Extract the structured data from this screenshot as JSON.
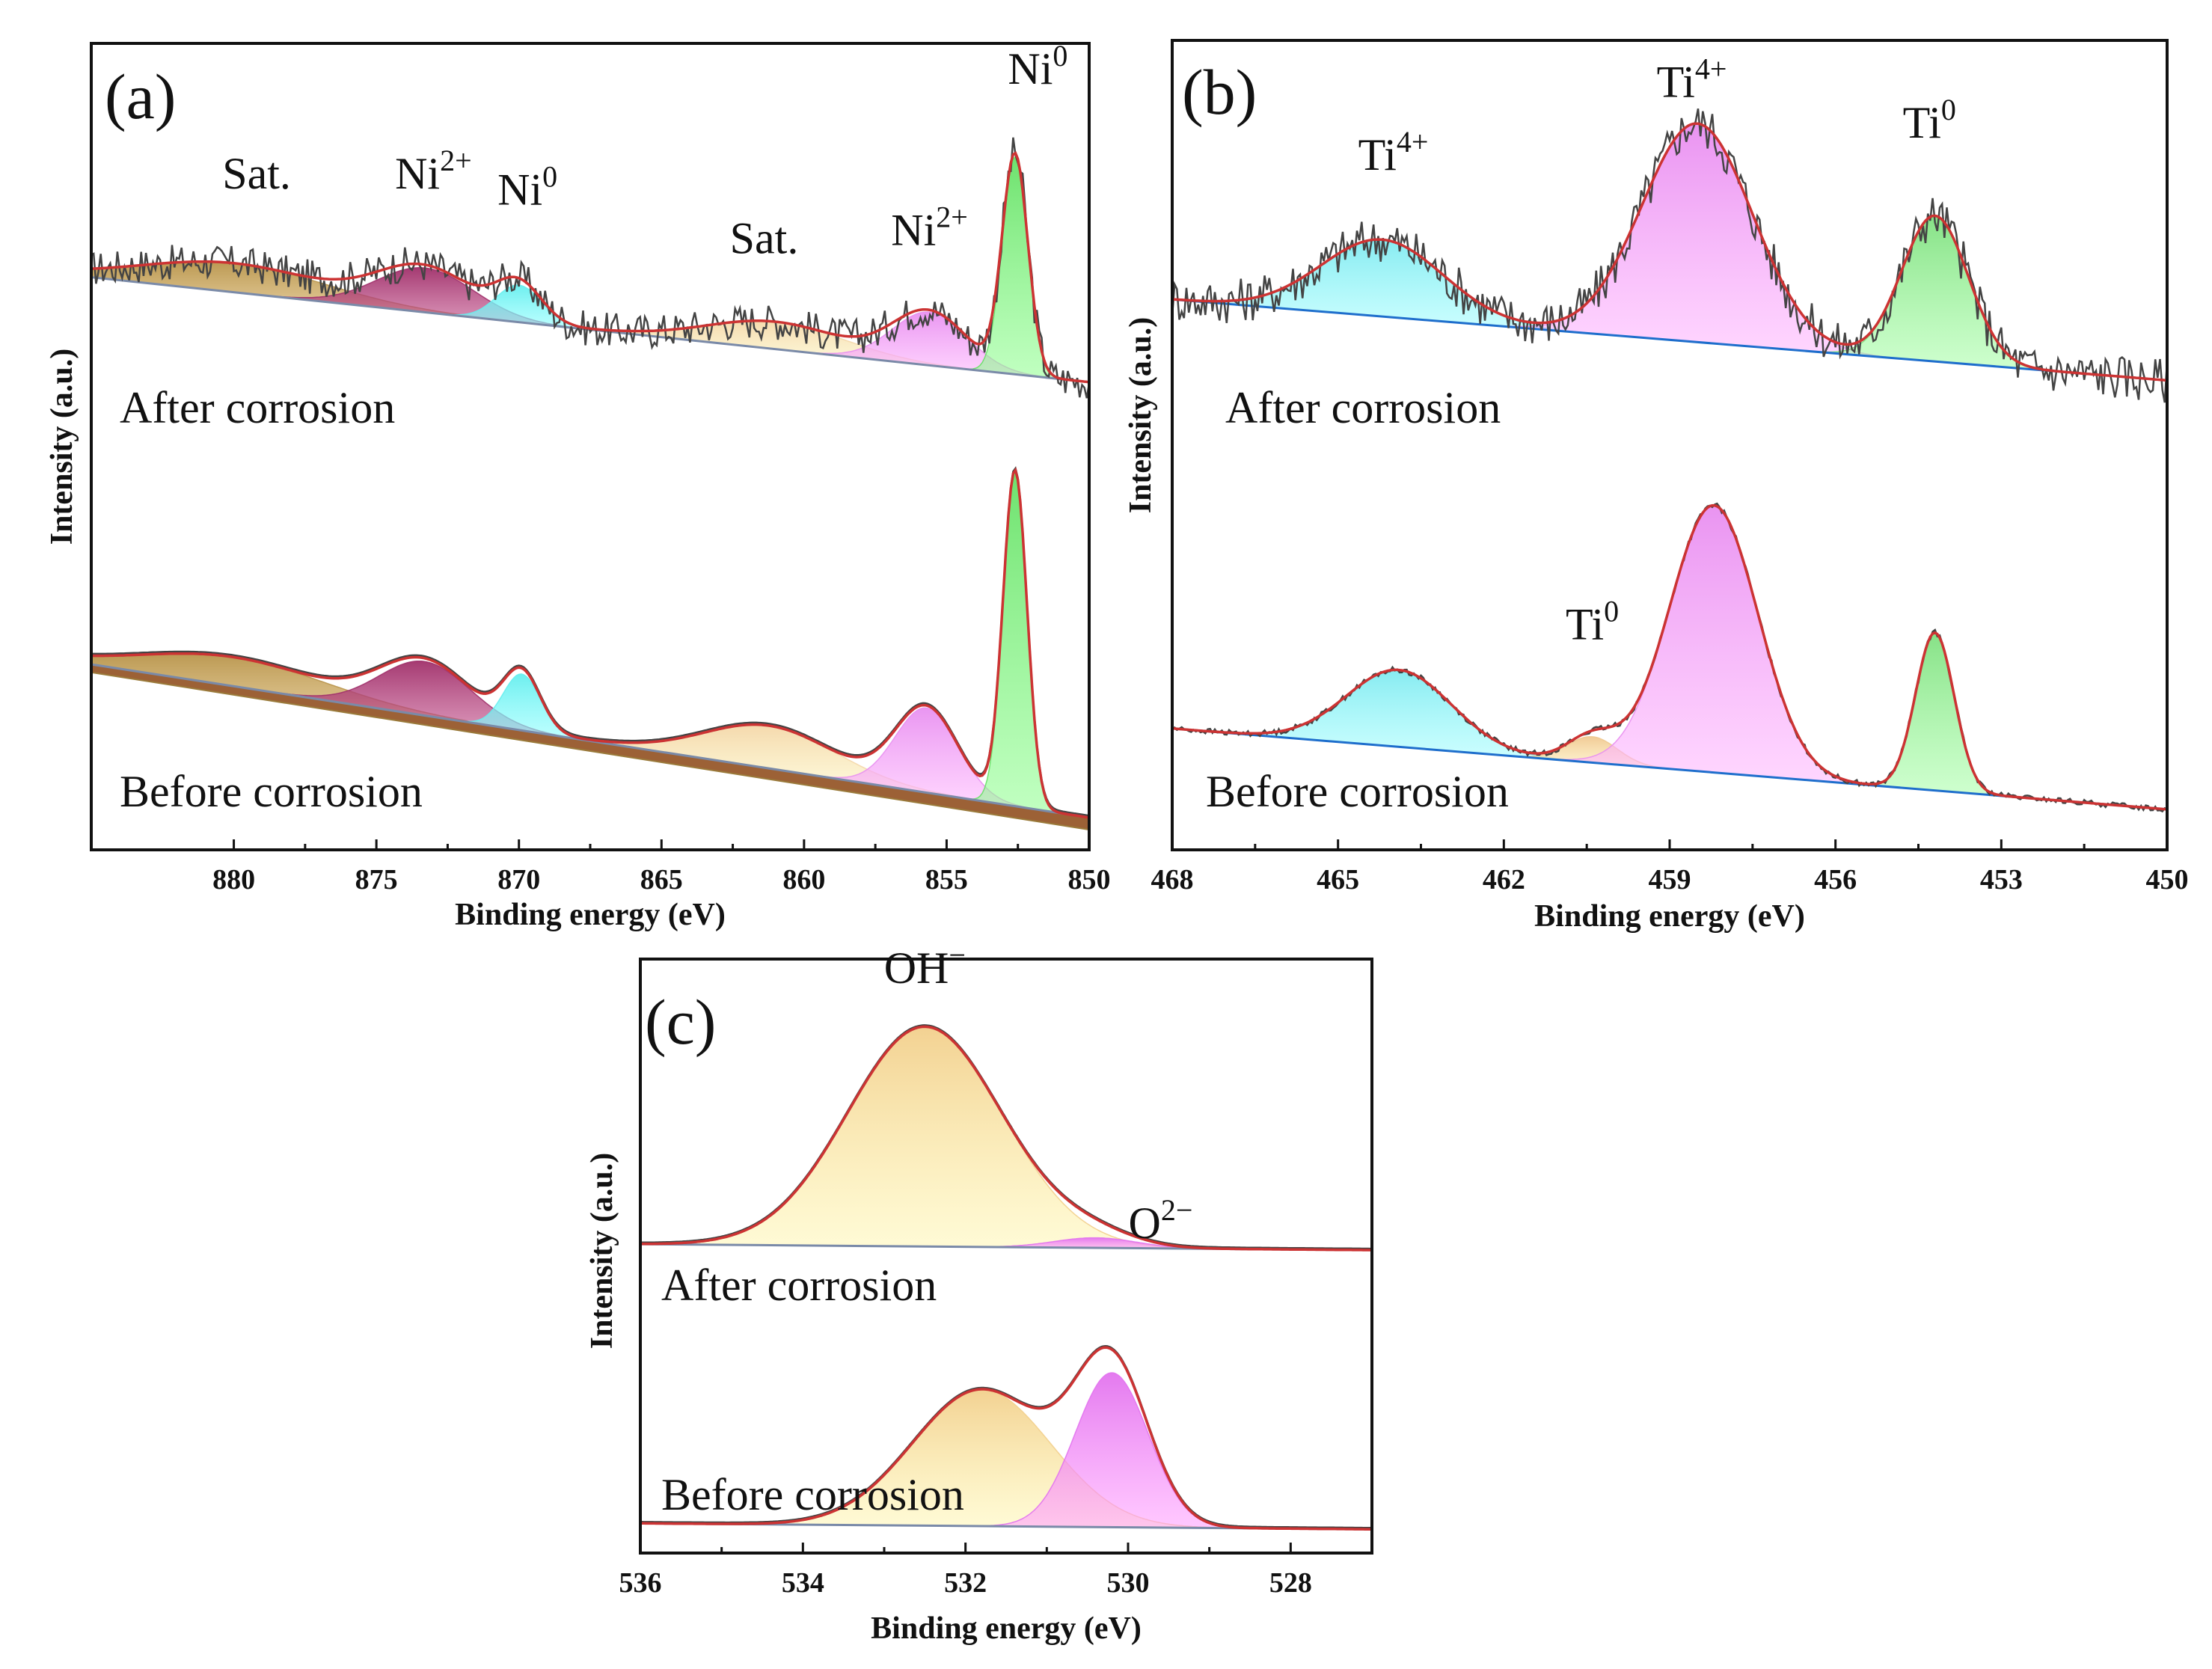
{
  "colors": {
    "satellite": "#b8944a",
    "ni2_low": "#a0306a",
    "ni0": "#66eeee",
    "sat2": "#f4d7a8",
    "ni2_high": "#e890f0",
    "ni0_main": "#66e066",
    "ti4_low": "#80eaf0",
    "ti4_high": "#e88ef0",
    "ti0": "#80e080",
    "ti0_small": "#f0c890",
    "oh": "#f2cf8c",
    "o2": "#e273ee",
    "fit": "#cc3333",
    "raw": "#444444",
    "background": "#7a8aa8",
    "background_b": "#1e6ecc",
    "background_filled": "#8b4513"
  },
  "chart_data": [
    {
      "id": "a",
      "type": "line",
      "panel_label": "(a)",
      "xlabel": "Binding energy (eV)",
      "ylabel": "Intensity (a.u.)",
      "xlim": [
        885,
        850
      ],
      "xticks": [
        880,
        875,
        870,
        865,
        860,
        855,
        850
      ],
      "ylim": [
        0,
        100
      ],
      "notes": {
        "after": "After corrosion",
        "before": "Before corrosion"
      },
      "peak_labels": [
        {
          "text": "Sat.",
          "sup": "",
          "x": 879.2,
          "y": 82
        },
        {
          "text": "Ni",
          "sup": "2+",
          "x": 873.0,
          "y": 82
        },
        {
          "text": "Ni",
          "sup": "0",
          "x": 869.7,
          "y": 80
        },
        {
          "text": "Sat.",
          "sup": "",
          "x": 861.4,
          "y": 74
        },
        {
          "text": "Ni",
          "sup": "2+",
          "x": 855.6,
          "y": 75
        },
        {
          "text": "Ni",
          "sup": "0",
          "x": 851.8,
          "y": 95
        }
      ],
      "spectra": [
        {
          "name": "After corrosion",
          "baseline": [
            [
              885,
              71
            ],
            [
              850,
              58
            ]
          ],
          "peaks": [
            {
              "name": "Sat.",
              "center": 880.0,
              "height": 3.6,
              "width": 3.2,
              "color": "satellite"
            },
            {
              "name": "Ni2+",
              "center": 873.3,
              "height": 5.5,
              "width": 1.7,
              "color": "ni2_low"
            },
            {
              "name": "Ni0",
              "center": 870.0,
              "height": 4.6,
              "width": 0.8,
              "color": "ni0"
            },
            {
              "name": "Sat.",
              "center": 861.0,
              "height": 3.4,
              "width": 2.4,
              "color": "sat2"
            },
            {
              "name": "Ni2+",
              "center": 855.6,
              "height": 6.6,
              "width": 1.3,
              "color": "ni2_high"
            },
            {
              "name": "Ni0",
              "center": 852.6,
              "height": 27.0,
              "width": 0.45,
              "color": "ni0_main"
            }
          ],
          "noise": 2.2
        },
        {
          "name": "Before corrosion",
          "baseline": [
            [
              885,
              23
            ],
            [
              850,
              4
            ]
          ],
          "peaks": [
            {
              "name": "Sat.",
              "center": 880.0,
              "height": 3.6,
              "width": 3.2,
              "color": "satellite"
            },
            {
              "name": "Ni2+",
              "center": 873.3,
              "height": 6.7,
              "width": 1.6,
              "color": "ni2_low"
            },
            {
              "name": "Ni0",
              "center": 869.9,
              "height": 7.0,
              "width": 0.65,
              "color": "ni0"
            },
            {
              "name": "Sat.",
              "center": 861.2,
              "height": 5.3,
              "width": 2.3,
              "color": "sat2"
            },
            {
              "name": "Ni2+",
              "center": 855.7,
              "height": 10.5,
              "width": 1.1,
              "color": "ni2_high"
            },
            {
              "name": "Ni0",
              "center": 852.6,
              "height": 41.5,
              "width": 0.42,
              "color": "ni0_main"
            }
          ],
          "noise": 0
        }
      ]
    },
    {
      "id": "b",
      "type": "line",
      "panel_label": "(b)",
      "xlabel": "Binding energy (eV)",
      "ylabel": "Intensity (a.u.)",
      "xlim": [
        468,
        450
      ],
      "xticks": [
        468,
        465,
        462,
        459,
        456,
        453,
        450
      ],
      "ylim": [
        0,
        100
      ],
      "notes": {
        "after": "After corrosion",
        "before": "Before corrosion"
      },
      "peak_labels": [
        {
          "text": "Ti",
          "sup": "4+",
          "x": 464.0,
          "y": 84
        },
        {
          "text": "Ti",
          "sup": "4+",
          "x": 458.6,
          "y": 93
        },
        {
          "text": "Ti",
          "sup": "0",
          "x": 454.3,
          "y": 88
        },
        {
          "text": "Ti",
          "sup": "0",
          "x": 460.4,
          "y": 26
        }
      ],
      "spectra": [
        {
          "name": "After corrosion",
          "baseline": [
            [
              468,
              68
            ],
            [
              450,
              58
            ]
          ],
          "peaks": [
            {
              "name": "Ti4+",
              "center": 464.2,
              "height": 9.5,
              "width": 1.1,
              "color": "ti4_low"
            },
            {
              "name": "Ti4+",
              "center": 458.5,
              "height": 27.0,
              "width": 1.0,
              "color": "ti4_high"
            },
            {
              "name": "Ti0",
              "center": 454.2,
              "height": 18.0,
              "width": 0.6,
              "color": "ti0"
            }
          ],
          "noise": 2.8
        },
        {
          "name": "Before corrosion",
          "baseline": [
            [
              468,
              15
            ],
            [
              450,
              5
            ]
          ],
          "peaks": [
            {
              "name": "Ti4+",
              "center": 463.9,
              "height": 9.5,
              "width": 0.95,
              "color": "ti4_low"
            },
            {
              "name": "Ti0",
              "center": 460.4,
              "height": 3.2,
              "width": 0.45,
              "color": "ti0_small"
            },
            {
              "name": "Ti4+",
              "center": 458.2,
              "height": 33.0,
              "width": 0.8,
              "color": "ti4_high"
            },
            {
              "name": "Ti0",
              "center": 454.2,
              "height": 19.5,
              "width": 0.35,
              "color": "ti0"
            }
          ],
          "noise": 0.35
        }
      ]
    },
    {
      "id": "c",
      "type": "line",
      "panel_label": "(c)",
      "xlabel": "Binding energy (eV)",
      "ylabel": "Intensity (a.u.)",
      "xlim": [
        536,
        527
      ],
      "xticks": [
        536,
        534,
        532,
        530,
        528
      ],
      "ylim": [
        0,
        100
      ],
      "notes": {
        "after": "After corrosion",
        "before": "Before corrosion"
      },
      "peak_labels": [
        {
          "text": "OH",
          "sup": "−",
          "x": 532.5,
          "y": 96
        },
        {
          "text": "O",
          "sup": "2−",
          "x": 529.6,
          "y": 53
        }
      ],
      "spectra": [
        {
          "name": "After corrosion",
          "baseline": [
            [
              536,
              52
            ],
            [
              527,
              51
            ]
          ],
          "peaks": [
            {
              "name": "OH-",
              "center": 532.5,
              "height": 37.0,
              "width": 0.95,
              "color": "oh"
            },
            {
              "name": "O2-",
              "center": 530.4,
              "height": 1.7,
              "width": 0.5,
              "color": "o2"
            }
          ],
          "noise": 0
        },
        {
          "name": "Before corrosion",
          "baseline": [
            [
              536,
              5
            ],
            [
              527,
              4
            ]
          ],
          "peaks": [
            {
              "name": "OH-",
              "center": 531.8,
              "height": 23.0,
              "width": 0.85,
              "color": "oh"
            },
            {
              "name": "O2-",
              "center": 530.2,
              "height": 26.0,
              "width": 0.45,
              "color": "o2"
            }
          ],
          "noise": 0
        }
      ]
    }
  ]
}
